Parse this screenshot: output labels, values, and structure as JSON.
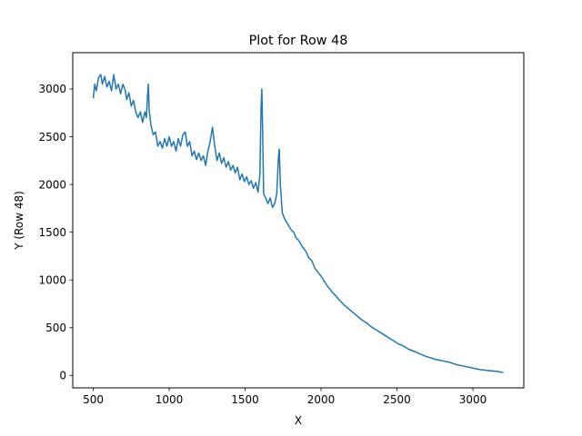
{
  "chart_data": {
    "type": "line",
    "title": "Plot for Row 48",
    "xlabel": "X",
    "ylabel": "Y (Row 48)",
    "xlim": [
      365,
      3335
    ],
    "ylim": [
      -130,
      3380
    ],
    "xticks": [
      500,
      1000,
      1500,
      2000,
      2500,
      3000
    ],
    "yticks": [
      0,
      500,
      1000,
      1500,
      2000,
      2500,
      3000
    ],
    "grid": false,
    "series_color": "#1f77b4",
    "series": [
      {
        "points": [
          [
            500,
            2900
          ],
          [
            510,
            3050
          ],
          [
            520,
            2980
          ],
          [
            535,
            3120
          ],
          [
            550,
            3150
          ],
          [
            560,
            3050
          ],
          [
            575,
            3130
          ],
          [
            590,
            3020
          ],
          [
            605,
            3080
          ],
          [
            620,
            2980
          ],
          [
            635,
            3150
          ],
          [
            650,
            3000
          ],
          [
            665,
            3050
          ],
          [
            680,
            2950
          ],
          [
            695,
            3050
          ],
          [
            710,
            2990
          ],
          [
            720,
            2890
          ],
          [
            735,
            2960
          ],
          [
            750,
            2820
          ],
          [
            765,
            2880
          ],
          [
            780,
            2760
          ],
          [
            795,
            2700
          ],
          [
            810,
            2760
          ],
          [
            825,
            2650
          ],
          [
            840,
            2760
          ],
          [
            850,
            2700
          ],
          [
            858,
            2950
          ],
          [
            863,
            3050
          ],
          [
            868,
            2780
          ],
          [
            880,
            2620
          ],
          [
            895,
            2520
          ],
          [
            910,
            2550
          ],
          [
            925,
            2400
          ],
          [
            940,
            2450
          ],
          [
            955,
            2380
          ],
          [
            970,
            2480
          ],
          [
            985,
            2400
          ],
          [
            1000,
            2500
          ],
          [
            1015,
            2400
          ],
          [
            1030,
            2450
          ],
          [
            1045,
            2350
          ],
          [
            1060,
            2480
          ],
          [
            1075,
            2400
          ],
          [
            1090,
            2520
          ],
          [
            1105,
            2550
          ],
          [
            1120,
            2400
          ],
          [
            1135,
            2450
          ],
          [
            1150,
            2300
          ],
          [
            1165,
            2350
          ],
          [
            1180,
            2260
          ],
          [
            1195,
            2330
          ],
          [
            1210,
            2250
          ],
          [
            1225,
            2300
          ],
          [
            1240,
            2200
          ],
          [
            1255,
            2350
          ],
          [
            1270,
            2450
          ],
          [
            1285,
            2600
          ],
          [
            1300,
            2400
          ],
          [
            1315,
            2250
          ],
          [
            1330,
            2330
          ],
          [
            1345,
            2220
          ],
          [
            1360,
            2280
          ],
          [
            1375,
            2180
          ],
          [
            1390,
            2240
          ],
          [
            1405,
            2150
          ],
          [
            1420,
            2200
          ],
          [
            1435,
            2120
          ],
          [
            1450,
            2180
          ],
          [
            1465,
            2050
          ],
          [
            1480,
            2110
          ],
          [
            1495,
            2030
          ],
          [
            1510,
            2080
          ],
          [
            1525,
            2000
          ],
          [
            1540,
            2040
          ],
          [
            1555,
            1960
          ],
          [
            1570,
            2020
          ],
          [
            1585,
            1920
          ],
          [
            1597,
            2100
          ],
          [
            1605,
            2800
          ],
          [
            1610,
            3000
          ],
          [
            1615,
            2600
          ],
          [
            1622,
            1900
          ],
          [
            1635,
            1860
          ],
          [
            1650,
            1800
          ],
          [
            1665,
            1860
          ],
          [
            1680,
            1760
          ],
          [
            1695,
            1800
          ],
          [
            1708,
            1900
          ],
          [
            1720,
            2300
          ],
          [
            1725,
            2370
          ],
          [
            1732,
            2000
          ],
          [
            1745,
            1700
          ],
          [
            1760,
            1640
          ],
          [
            1775,
            1600
          ],
          [
            1790,
            1560
          ],
          [
            1805,
            1520
          ],
          [
            1820,
            1500
          ],
          [
            1835,
            1440
          ],
          [
            1850,
            1420
          ],
          [
            1865,
            1380
          ],
          [
            1880,
            1340
          ],
          [
            1900,
            1300
          ],
          [
            1920,
            1230
          ],
          [
            1940,
            1200
          ],
          [
            1960,
            1120
          ],
          [
            1980,
            1080
          ],
          [
            2000,
            1040
          ],
          [
            2020,
            990
          ],
          [
            2040,
            940
          ],
          [
            2060,
            900
          ],
          [
            2080,
            860
          ],
          [
            2100,
            830
          ],
          [
            2120,
            790
          ],
          [
            2150,
            740
          ],
          [
            2180,
            700
          ],
          [
            2210,
            660
          ],
          [
            2240,
            620
          ],
          [
            2270,
            580
          ],
          [
            2300,
            550
          ],
          [
            2330,
            510
          ],
          [
            2360,
            480
          ],
          [
            2390,
            450
          ],
          [
            2420,
            420
          ],
          [
            2450,
            390
          ],
          [
            2480,
            360
          ],
          [
            2510,
            330
          ],
          [
            2540,
            310
          ],
          [
            2570,
            280
          ],
          [
            2600,
            260
          ],
          [
            2630,
            240
          ],
          [
            2660,
            220
          ],
          [
            2690,
            200
          ],
          [
            2720,
            185
          ],
          [
            2750,
            170
          ],
          [
            2780,
            160
          ],
          [
            2810,
            150
          ],
          [
            2840,
            140
          ],
          [
            2870,
            125
          ],
          [
            2900,
            110
          ],
          [
            2930,
            100
          ],
          [
            2960,
            90
          ],
          [
            2990,
            80
          ],
          [
            3020,
            70
          ],
          [
            3050,
            60
          ],
          [
            3080,
            55
          ],
          [
            3110,
            50
          ],
          [
            3140,
            45
          ],
          [
            3170,
            40
          ],
          [
            3200,
            30
          ]
        ]
      }
    ]
  }
}
